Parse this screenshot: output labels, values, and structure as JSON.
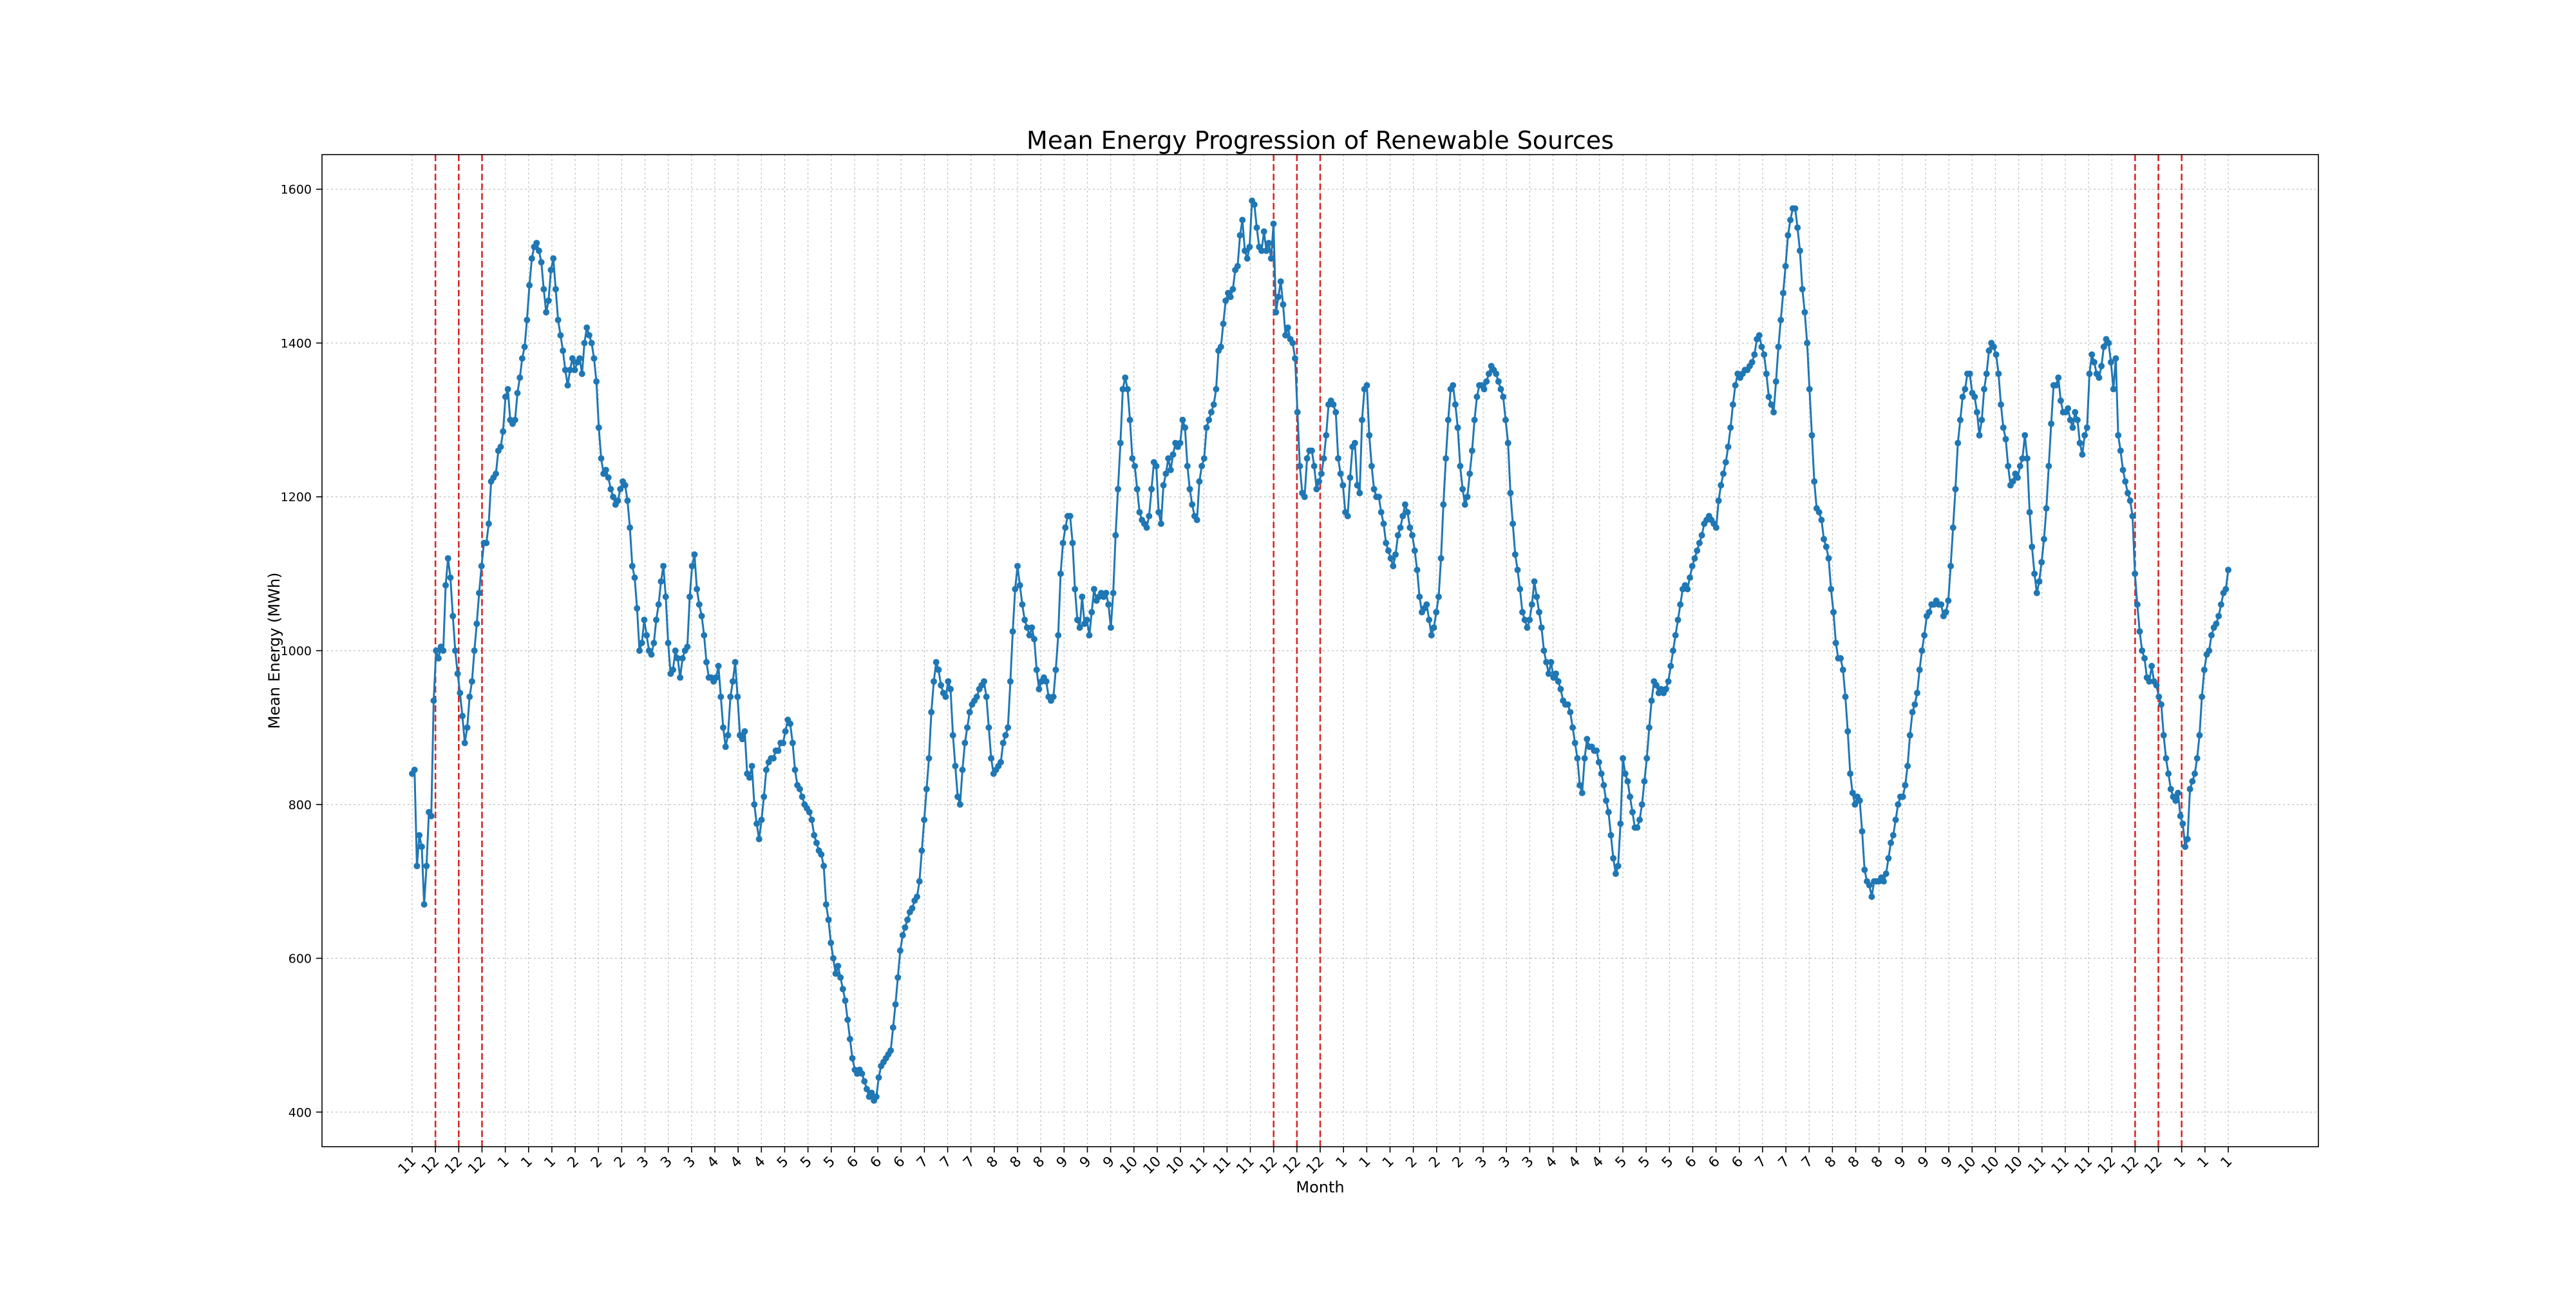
{
  "chart_data": {
    "type": "line",
    "title": "Mean Energy Progression of Renewable Sources",
    "xlabel": "Month",
    "ylabel": "Mean Energy (MWh)",
    "ylim": [
      355,
      1645
    ],
    "yticks": [
      400,
      600,
      800,
      1000,
      1200,
      1400,
      1600
    ],
    "grid": true,
    "legend": "none",
    "line_color": "#1f77b4",
    "vline_color": "#d62728",
    "xtick_labels": [
      "11",
      "12",
      "12",
      "12",
      "1",
      "1",
      "1",
      "2",
      "2",
      "2",
      "3",
      "3",
      "3",
      "4",
      "4",
      "4",
      "5",
      "5",
      "5",
      "6",
      "6",
      "6",
      "7",
      "7",
      "7",
      "8",
      "8",
      "8",
      "9",
      "9",
      "9",
      "10",
      "10",
      "10",
      "11",
      "11",
      "11",
      "12",
      "12",
      "12",
      "1",
      "1",
      "1",
      "2",
      "2",
      "2",
      "3",
      "3",
      "3",
      "4",
      "4",
      "4",
      "5",
      "5",
      "5",
      "6",
      "6",
      "6",
      "7",
      "7",
      "7",
      "8",
      "8",
      "8",
      "9",
      "9",
      "9",
      "10",
      "10",
      "10",
      "11",
      "11",
      "11",
      "12",
      "12",
      "12",
      "1",
      "1",
      "1"
    ],
    "vlines_at_tick": [
      1,
      2,
      3,
      37,
      38,
      39,
      74,
      75,
      76
    ],
    "series": [
      {
        "values": [
          840,
          845,
          720,
          760,
          745,
          670,
          720,
          790,
          785,
          935,
          1000,
          990,
          1005,
          1000,
          1085,
          1120,
          1095,
          1045,
          1000,
          970,
          945,
          915,
          880,
          900,
          940,
          960,
          1000,
          1035,
          1075,
          1110,
          1140,
          1140,
          1165,
          1220,
          1225,
          1230,
          1260,
          1265,
          1285,
          1330,
          1340,
          1300,
          1295,
          1300,
          1335,
          1355,
          1380,
          1395,
          1430,
          1475,
          1510,
          1525,
          1530,
          1520,
          1505,
          1470,
          1440,
          1455,
          1495,
          1510,
          1470,
          1430,
          1410,
          1390,
          1365,
          1345,
          1365,
          1380,
          1365,
          1375,
          1380,
          1360,
          1400,
          1420,
          1410,
          1400,
          1380,
          1350,
          1290,
          1250,
          1230,
          1235,
          1225,
          1210,
          1200,
          1190,
          1195,
          1210,
          1220,
          1215,
          1195,
          1160,
          1110,
          1095,
          1055,
          1000,
          1010,
          1040,
          1020,
          1000,
          995,
          1010,
          1040,
          1060,
          1090,
          1110,
          1070,
          1010,
          970,
          975,
          1000,
          990,
          965,
          990,
          1000,
          1005,
          1070,
          1110,
          1125,
          1080,
          1060,
          1045,
          1020,
          985,
          965,
          965,
          960,
          965,
          980,
          940,
          900,
          875,
          890,
          940,
          960,
          985,
          940,
          890,
          885,
          895,
          840,
          835,
          850,
          800,
          775,
          755,
          780,
          810,
          845,
          855,
          860,
          860,
          870,
          870,
          880,
          880,
          895,
          910,
          905,
          880,
          845,
          825,
          820,
          810,
          800,
          795,
          790,
          780,
          760,
          750,
          740,
          735,
          720,
          670,
          650,
          620,
          600,
          580,
          590,
          575,
          560,
          545,
          520,
          495,
          470,
          455,
          450,
          455,
          450,
          440,
          430,
          420,
          425,
          415,
          420,
          445,
          460,
          465,
          470,
          475,
          480,
          510,
          540,
          575,
          610,
          630,
          640,
          650,
          660,
          665,
          675,
          680,
          700,
          740,
          780,
          820,
          860,
          920,
          960,
          985,
          975,
          955,
          945,
          940,
          960,
          950,
          890,
          850,
          810,
          800,
          845,
          880,
          900,
          920,
          930,
          935,
          940,
          950,
          955,
          960,
          940,
          900,
          860,
          840,
          845,
          850,
          855,
          880,
          890,
          900,
          960,
          1025,
          1080,
          1110,
          1085,
          1060,
          1040,
          1030,
          1020,
          1030,
          1015,
          975,
          950,
          960,
          965,
          960,
          940,
          935,
          940,
          975,
          1020,
          1100,
          1140,
          1160,
          1175,
          1175,
          1140,
          1080,
          1040,
          1030,
          1070,
          1035,
          1040,
          1020,
          1050,
          1080,
          1065,
          1070,
          1075,
          1070,
          1075,
          1060,
          1030,
          1075,
          1150,
          1210,
          1270,
          1340,
          1355,
          1340,
          1300,
          1250,
          1240,
          1210,
          1180,
          1170,
          1165,
          1160,
          1175,
          1210,
          1245,
          1240,
          1180,
          1165,
          1215,
          1230,
          1250,
          1235,
          1255,
          1270,
          1265,
          1270,
          1300,
          1290,
          1240,
          1210,
          1190,
          1175,
          1170,
          1220,
          1240,
          1250,
          1290,
          1300,
          1310,
          1320,
          1340,
          1390,
          1395,
          1425,
          1455,
          1465,
          1460,
          1470,
          1495,
          1500,
          1540,
          1560,
          1520,
          1510,
          1525,
          1585,
          1580,
          1550,
          1525,
          1520,
          1545,
          1520,
          1530,
          1510,
          1555,
          1440,
          1460,
          1480,
          1450,
          1410,
          1420,
          1405,
          1400,
          1380,
          1310,
          1240,
          1205,
          1200,
          1250,
          1260,
          1260,
          1240,
          1210,
          1220,
          1230,
          1250,
          1280,
          1320,
          1325,
          1320,
          1310,
          1250,
          1230,
          1215,
          1180,
          1175,
          1225,
          1265,
          1270,
          1215,
          1205,
          1300,
          1340,
          1345,
          1280,
          1240,
          1210,
          1200,
          1200,
          1180,
          1165,
          1140,
          1130,
          1120,
          1110,
          1125,
          1150,
          1160,
          1175,
          1190,
          1180,
          1160,
          1150,
          1130,
          1105,
          1070,
          1050,
          1055,
          1060,
          1040,
          1020,
          1030,
          1050,
          1070,
          1120,
          1190,
          1250,
          1300,
          1340,
          1345,
          1320,
          1290,
          1240,
          1210,
          1190,
          1200,
          1230,
          1260,
          1300,
          1330,
          1345,
          1345,
          1340,
          1350,
          1360,
          1370,
          1365,
          1360,
          1350,
          1340,
          1330,
          1300,
          1270,
          1205,
          1165,
          1125,
          1105,
          1080,
          1050,
          1040,
          1030,
          1040,
          1060,
          1090,
          1070,
          1050,
          1030,
          1000,
          985,
          970,
          985,
          965,
          970,
          960,
          950,
          935,
          930,
          930,
          920,
          900,
          880,
          860,
          825,
          815,
          860,
          885,
          875,
          875,
          870,
          870,
          855,
          840,
          825,
          805,
          790,
          760,
          730,
          710,
          720,
          775,
          860,
          840,
          830,
          810,
          790,
          770,
          770,
          780,
          800,
          830,
          860,
          900,
          935,
          960,
          955,
          945,
          950,
          945,
          950,
          960,
          980,
          1000,
          1020,
          1040,
          1060,
          1080,
          1085,
          1080,
          1095,
          1110,
          1120,
          1130,
          1140,
          1150,
          1165,
          1170,
          1175,
          1170,
          1165,
          1160,
          1195,
          1215,
          1230,
          1245,
          1265,
          1290,
          1320,
          1345,
          1360,
          1355,
          1360,
          1365,
          1365,
          1370,
          1375,
          1385,
          1405,
          1410,
          1395,
          1385,
          1360,
          1330,
          1320,
          1310,
          1350,
          1395,
          1430,
          1465,
          1500,
          1540,
          1560,
          1575,
          1575,
          1550,
          1520,
          1470,
          1440,
          1400,
          1340,
          1280,
          1220,
          1185,
          1180,
          1170,
          1145,
          1135,
          1120,
          1080,
          1050,
          1010,
          990,
          990,
          975,
          940,
          895,
          840,
          815,
          800,
          810,
          805,
          765,
          715,
          700,
          695,
          680,
          700,
          700,
          700,
          705,
          700,
          710,
          730,
          750,
          760,
          780,
          800,
          810,
          810,
          825,
          850,
          890,
          920,
          930,
          945,
          975,
          1000,
          1020,
          1045,
          1050,
          1060,
          1060,
          1065,
          1060,
          1060,
          1045,
          1050,
          1065,
          1110,
          1160,
          1210,
          1270,
          1300,
          1330,
          1340,
          1360,
          1360,
          1335,
          1330,
          1310,
          1280,
          1300,
          1340,
          1360,
          1390,
          1400,
          1395,
          1385,
          1360,
          1320,
          1290,
          1275,
          1240,
          1215,
          1220,
          1230,
          1225,
          1240,
          1250,
          1280,
          1250,
          1180,
          1135,
          1100,
          1075,
          1090,
          1115,
          1145,
          1185,
          1240,
          1295,
          1345,
          1345,
          1355,
          1325,
          1310,
          1310,
          1315,
          1300,
          1290,
          1310,
          1300,
          1270,
          1255,
          1280,
          1290,
          1360,
          1385,
          1375,
          1360,
          1355,
          1370,
          1395,
          1405,
          1400,
          1375,
          1340,
          1380,
          1280,
          1260,
          1235,
          1220,
          1205,
          1195,
          1175,
          1100,
          1060,
          1025,
          1000,
          990,
          965,
          960,
          980,
          960,
          955,
          940,
          930,
          890,
          860,
          840,
          820,
          810,
          805,
          815,
          785,
          775,
          745,
          755,
          820,
          830,
          840,
          860,
          890,
          940,
          975,
          995,
          1000,
          1020,
          1030,
          1035,
          1045,
          1060,
          1075,
          1080,
          1105
        ]
      }
    ]
  }
}
